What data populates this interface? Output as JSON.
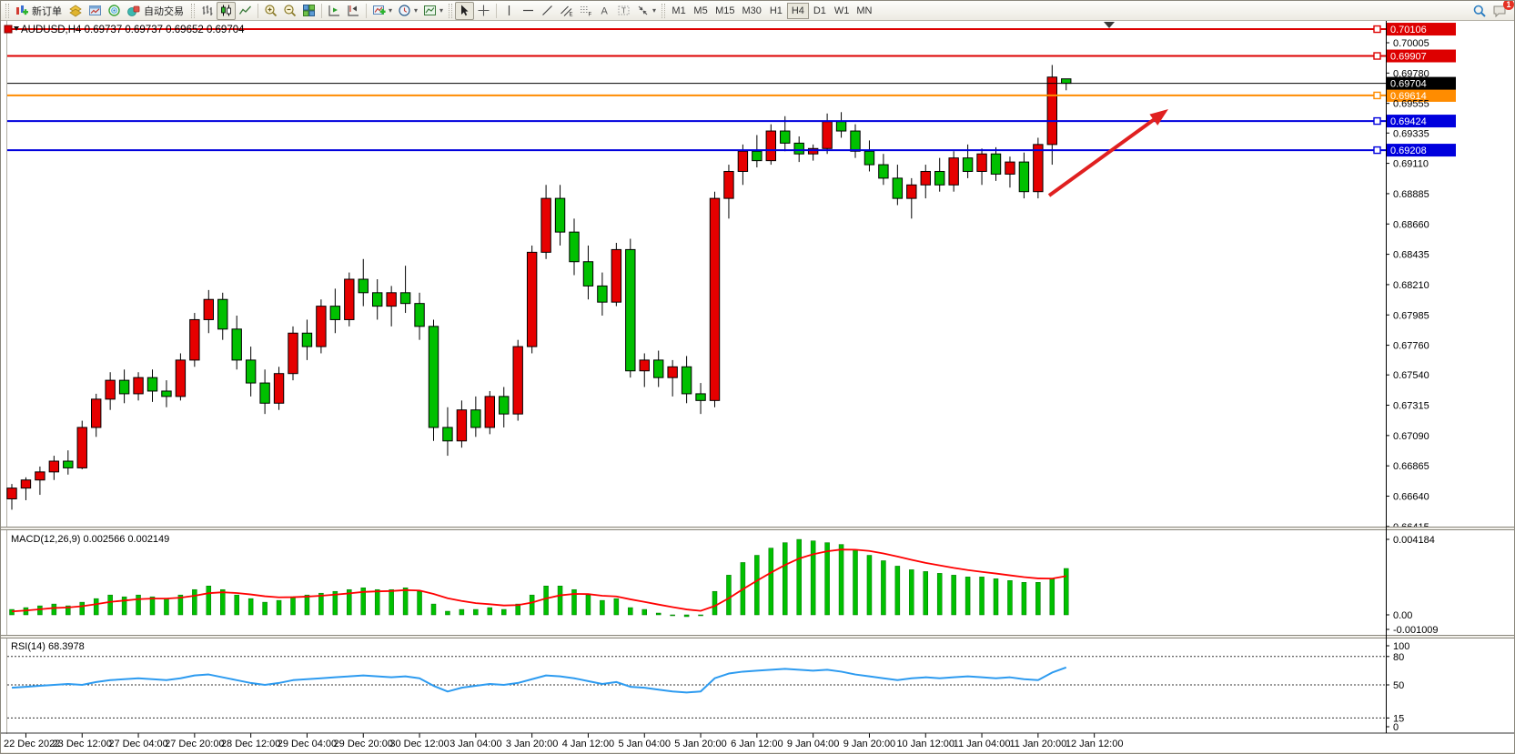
{
  "toolbar": {
    "new_order_label": "新订单",
    "auto_trading_label": "自动交易",
    "timeframes": [
      "M1",
      "M5",
      "M15",
      "M30",
      "H1",
      "H4",
      "D1",
      "W1",
      "MN"
    ],
    "active_timeframe": "H4",
    "notification_count": "1"
  },
  "chart": {
    "title": "AUDUSD,H4  0.69737 0.69737 0.69652 0.69704",
    "symbol": "AUDUSD",
    "period": "H4",
    "ohlc": {
      "open": "0.69737",
      "high": "0.69737",
      "low": "0.69652",
      "close": "0.69704"
    },
    "current_price_badge": "0.69704",
    "price_axis_ticks": [
      "0.70005",
      "0.69780",
      "0.69555",
      "0.69335",
      "0.69110",
      "0.68885",
      "0.68660",
      "0.68435",
      "0.68210",
      "0.67985",
      "0.67760",
      "0.67540",
      "0.67315",
      "0.67090",
      "0.66865",
      "0.66640",
      "0.66415"
    ],
    "hlines": [
      {
        "price": 0.70106,
        "badge": "0.70106",
        "color": "#dd0000"
      },
      {
        "price": 0.69907,
        "badge": "0.69907",
        "color": "#dd0000"
      },
      {
        "price": 0.69614,
        "badge": "0.69614",
        "color": "#ff8c00"
      },
      {
        "price": 0.69424,
        "badge": "0.69424",
        "color": "#0000dd"
      },
      {
        "price": 0.69208,
        "badge": "0.69208",
        "color": "#0000dd"
      }
    ]
  },
  "macd_panel": {
    "label": "MACD(12,26,9) 0.002566 0.002149",
    "axis": [
      "0.004184",
      "0.00",
      "-0.001009"
    ]
  },
  "rsi_panel": {
    "label": "RSI(14) 68.3978",
    "axis": [
      "100",
      "80",
      "50",
      "15",
      "0"
    ],
    "levels": [
      80,
      50,
      15
    ]
  },
  "time_axis": [
    "22 Dec 2022",
    "23 Dec 12:00",
    "27 Dec 04:00",
    "27 Dec 20:00",
    "28 Dec 12:00",
    "29 Dec 04:00",
    "29 Dec 20:00",
    "30 Dec 12:00",
    "3 Jan 04:00",
    "3 Jan 20:00",
    "4 Jan 12:00",
    "5 Jan 04:00",
    "5 Jan 20:00",
    "6 Jan 12:00",
    "9 Jan 04:00",
    "9 Jan 20:00",
    "10 Jan 12:00",
    "11 Jan 04:00",
    "11 Jan 20:00",
    "12 Jan 12:00"
  ],
  "chart_data": {
    "type": "candlestick",
    "symbol": "AUDUSD",
    "timeframe": "H4",
    "colors": {
      "up": "#e60000",
      "down": "#00c000",
      "wick": "#000000",
      "macd_hist": "#00c000",
      "macd_signal": "#ff0000",
      "rsi_line": "#2d9bf0"
    },
    "price_range": {
      "top_tick": 0.70005,
      "bottom_tick": 0.66415,
      "tick_step": 0.00225
    },
    "candles": [
      [
        0.6662,
        0.6673,
        0.6654,
        0.667
      ],
      [
        0.667,
        0.6678,
        0.6661,
        0.6676
      ],
      [
        0.6676,
        0.6686,
        0.6665,
        0.6682
      ],
      [
        0.6682,
        0.6694,
        0.6676,
        0.669
      ],
      [
        0.669,
        0.6698,
        0.668,
        0.6685
      ],
      [
        0.6685,
        0.672,
        0.6684,
        0.6715
      ],
      [
        0.6715,
        0.674,
        0.6708,
        0.6736
      ],
      [
        0.6736,
        0.6756,
        0.6728,
        0.675
      ],
      [
        0.675,
        0.6758,
        0.6733,
        0.674
      ],
      [
        0.674,
        0.6756,
        0.6735,
        0.6752
      ],
      [
        0.6752,
        0.6758,
        0.6734,
        0.6742
      ],
      [
        0.6742,
        0.675,
        0.673,
        0.6738
      ],
      [
        0.6738,
        0.677,
        0.6735,
        0.6765
      ],
      [
        0.6765,
        0.68,
        0.676,
        0.6795
      ],
      [
        0.6795,
        0.6817,
        0.6785,
        0.681
      ],
      [
        0.681,
        0.6815,
        0.678,
        0.6788
      ],
      [
        0.6788,
        0.6798,
        0.6758,
        0.6765
      ],
      [
        0.6765,
        0.6775,
        0.6738,
        0.6748
      ],
      [
        0.6748,
        0.6758,
        0.6725,
        0.6733
      ],
      [
        0.6733,
        0.676,
        0.6728,
        0.6755
      ],
      [
        0.6755,
        0.679,
        0.675,
        0.6785
      ],
      [
        0.6785,
        0.6795,
        0.6765,
        0.6775
      ],
      [
        0.6775,
        0.681,
        0.677,
        0.6805
      ],
      [
        0.6805,
        0.6818,
        0.6785,
        0.6795
      ],
      [
        0.6795,
        0.683,
        0.679,
        0.6825
      ],
      [
        0.6825,
        0.684,
        0.6805,
        0.6815
      ],
      [
        0.6815,
        0.6825,
        0.6795,
        0.6805
      ],
      [
        0.6805,
        0.682,
        0.679,
        0.6815
      ],
      [
        0.6815,
        0.6835,
        0.68,
        0.6807
      ],
      [
        0.6807,
        0.6815,
        0.678,
        0.679
      ],
      [
        0.679,
        0.6795,
        0.6705,
        0.6715
      ],
      [
        0.6715,
        0.673,
        0.6694,
        0.6705
      ],
      [
        0.6705,
        0.6735,
        0.67,
        0.6728
      ],
      [
        0.6728,
        0.6738,
        0.6708,
        0.6715
      ],
      [
        0.6715,
        0.6742,
        0.671,
        0.6738
      ],
      [
        0.6738,
        0.6745,
        0.6715,
        0.6725
      ],
      [
        0.6725,
        0.678,
        0.672,
        0.6775
      ],
      [
        0.6775,
        0.685,
        0.677,
        0.6845
      ],
      [
        0.6845,
        0.6895,
        0.684,
        0.6885
      ],
      [
        0.6885,
        0.6895,
        0.685,
        0.686
      ],
      [
        0.686,
        0.687,
        0.6828,
        0.6838
      ],
      [
        0.6838,
        0.685,
        0.681,
        0.682
      ],
      [
        0.682,
        0.683,
        0.6798,
        0.6808
      ],
      [
        0.6808,
        0.6852,
        0.6805,
        0.6847
      ],
      [
        0.6847,
        0.6855,
        0.6752,
        0.6757
      ],
      [
        0.6757,
        0.677,
        0.6745,
        0.6765
      ],
      [
        0.6765,
        0.6772,
        0.6745,
        0.6752
      ],
      [
        0.6752,
        0.6765,
        0.6738,
        0.676
      ],
      [
        0.676,
        0.6768,
        0.6733,
        0.674
      ],
      [
        0.674,
        0.6748,
        0.6725,
        0.6735
      ],
      [
        0.6735,
        0.689,
        0.673,
        0.6885
      ],
      [
        0.6885,
        0.691,
        0.687,
        0.6905
      ],
      [
        0.6905,
        0.6925,
        0.6895,
        0.692
      ],
      [
        0.692,
        0.6932,
        0.6908,
        0.6913
      ],
      [
        0.6913,
        0.694,
        0.691,
        0.6935
      ],
      [
        0.6935,
        0.6946,
        0.692,
        0.6926
      ],
      [
        0.6926,
        0.6931,
        0.6912,
        0.6918
      ],
      [
        0.6918,
        0.6925,
        0.6913,
        0.6922
      ],
      [
        0.6922,
        0.6948,
        0.6918,
        0.6942
      ],
      [
        0.6942,
        0.6949,
        0.693,
        0.6935
      ],
      [
        0.6935,
        0.694,
        0.6915,
        0.692
      ],
      [
        0.692,
        0.6928,
        0.6905,
        0.691
      ],
      [
        0.691,
        0.6918,
        0.6895,
        0.69
      ],
      [
        0.69,
        0.691,
        0.688,
        0.6885
      ],
      [
        0.6885,
        0.69,
        0.687,
        0.6895
      ],
      [
        0.6895,
        0.691,
        0.6885,
        0.6905
      ],
      [
        0.6905,
        0.6915,
        0.689,
        0.6895
      ],
      [
        0.6895,
        0.692,
        0.689,
        0.6915
      ],
      [
        0.6915,
        0.6925,
        0.69,
        0.6905
      ],
      [
        0.6905,
        0.6922,
        0.6895,
        0.6918
      ],
      [
        0.6918,
        0.6923,
        0.6898,
        0.6903
      ],
      [
        0.6903,
        0.6916,
        0.6893,
        0.6912
      ],
      [
        0.6912,
        0.6919,
        0.6885,
        0.689
      ],
      [
        0.689,
        0.693,
        0.6885,
        0.6925
      ],
      [
        0.6925,
        0.6984,
        0.691,
        0.6975
      ],
      [
        0.69737,
        0.69737,
        0.69652,
        0.69704
      ]
    ],
    "macd": {
      "histogram": [
        0.0003,
        0.0004,
        0.0005,
        0.0006,
        0.0005,
        0.0007,
        0.0009,
        0.0011,
        0.001,
        0.0011,
        0.001,
        0.0009,
        0.0011,
        0.0014,
        0.0016,
        0.0014,
        0.0011,
        0.0009,
        0.0007,
        0.0008,
        0.001,
        0.0011,
        0.0012,
        0.0013,
        0.0014,
        0.0015,
        0.0014,
        0.0014,
        0.0015,
        0.0013,
        0.0006,
        0.0002,
        0.0003,
        0.0003,
        0.0004,
        0.0003,
        0.0006,
        0.0011,
        0.0016,
        0.0016,
        0.0014,
        0.0011,
        0.0008,
        0.0009,
        0.0004,
        0.0003,
        0.0001,
        0.0,
        -0.0001,
        0.0,
        0.0013,
        0.0022,
        0.0029,
        0.0033,
        0.0037,
        0.004,
        0.00418,
        0.0041,
        0.004,
        0.0039,
        0.0036,
        0.0033,
        0.003,
        0.0027,
        0.0025,
        0.0024,
        0.0023,
        0.0022,
        0.0021,
        0.0021,
        0.002,
        0.0019,
        0.0018,
        0.0018,
        0.002,
        0.00257
      ],
      "signal": [
        0.00019,
        0.00024,
        0.00031,
        0.00038,
        0.00041,
        0.00048,
        0.00059,
        0.00072,
        0.00079,
        0.00087,
        0.0009,
        0.0009,
        0.00095,
        0.00106,
        0.0012,
        0.00125,
        0.00121,
        0.00113,
        0.00103,
        0.00097,
        0.00098,
        0.00101,
        0.00106,
        0.00112,
        0.00119,
        0.00127,
        0.0013,
        0.00132,
        0.00137,
        0.00135,
        0.00116,
        0.00092,
        0.00077,
        0.00065,
        0.00059,
        0.00052,
        0.00054,
        0.00068,
        0.00091,
        0.00108,
        0.00116,
        0.00115,
        0.00106,
        0.00102,
        0.00086,
        0.00072,
        0.00057,
        0.00043,
        0.0003,
        0.00022,
        0.00049,
        0.00092,
        0.00142,
        0.00189,
        0.00234,
        0.00276,
        0.00312,
        0.00336,
        0.00352,
        0.00362,
        0.00361,
        0.00354,
        0.0034,
        0.00323,
        0.00305,
        0.00288,
        0.00274,
        0.0026,
        0.00248,
        0.00238,
        0.00229,
        0.00219,
        0.00209,
        0.00202,
        0.00201,
        0.00215
      ],
      "last_values": {
        "macd": 0.002566,
        "signal": 0.002149
      },
      "range": [
        -0.001009,
        0.004184
      ]
    },
    "rsi": {
      "values": [
        47,
        48,
        49,
        50,
        51,
        50,
        53,
        55,
        56,
        57,
        56,
        55,
        57,
        60,
        61,
        58,
        55,
        52,
        50,
        52,
        55,
        56,
        57,
        58,
        59,
        60,
        59,
        58,
        59,
        57,
        49,
        43,
        47,
        49,
        51,
        50,
        52,
        56,
        60,
        59,
        57,
        54,
        51,
        53,
        48,
        47,
        45,
        43,
        42,
        43,
        57,
        62,
        64,
        65,
        66,
        67,
        66,
        65,
        66,
        64,
        61,
        59,
        57,
        55,
        57,
        58,
        57,
        58,
        59,
        58,
        57,
        58,
        56,
        55,
        63,
        68.4
      ],
      "last_value": 68.3978,
      "range": [
        0,
        100
      ]
    },
    "annotations": {
      "trend_arrow": {
        "from_xy": [
          1152,
          214
        ],
        "to_xy": [
          1283,
          119
        ],
        "color": "#e02020"
      }
    }
  }
}
